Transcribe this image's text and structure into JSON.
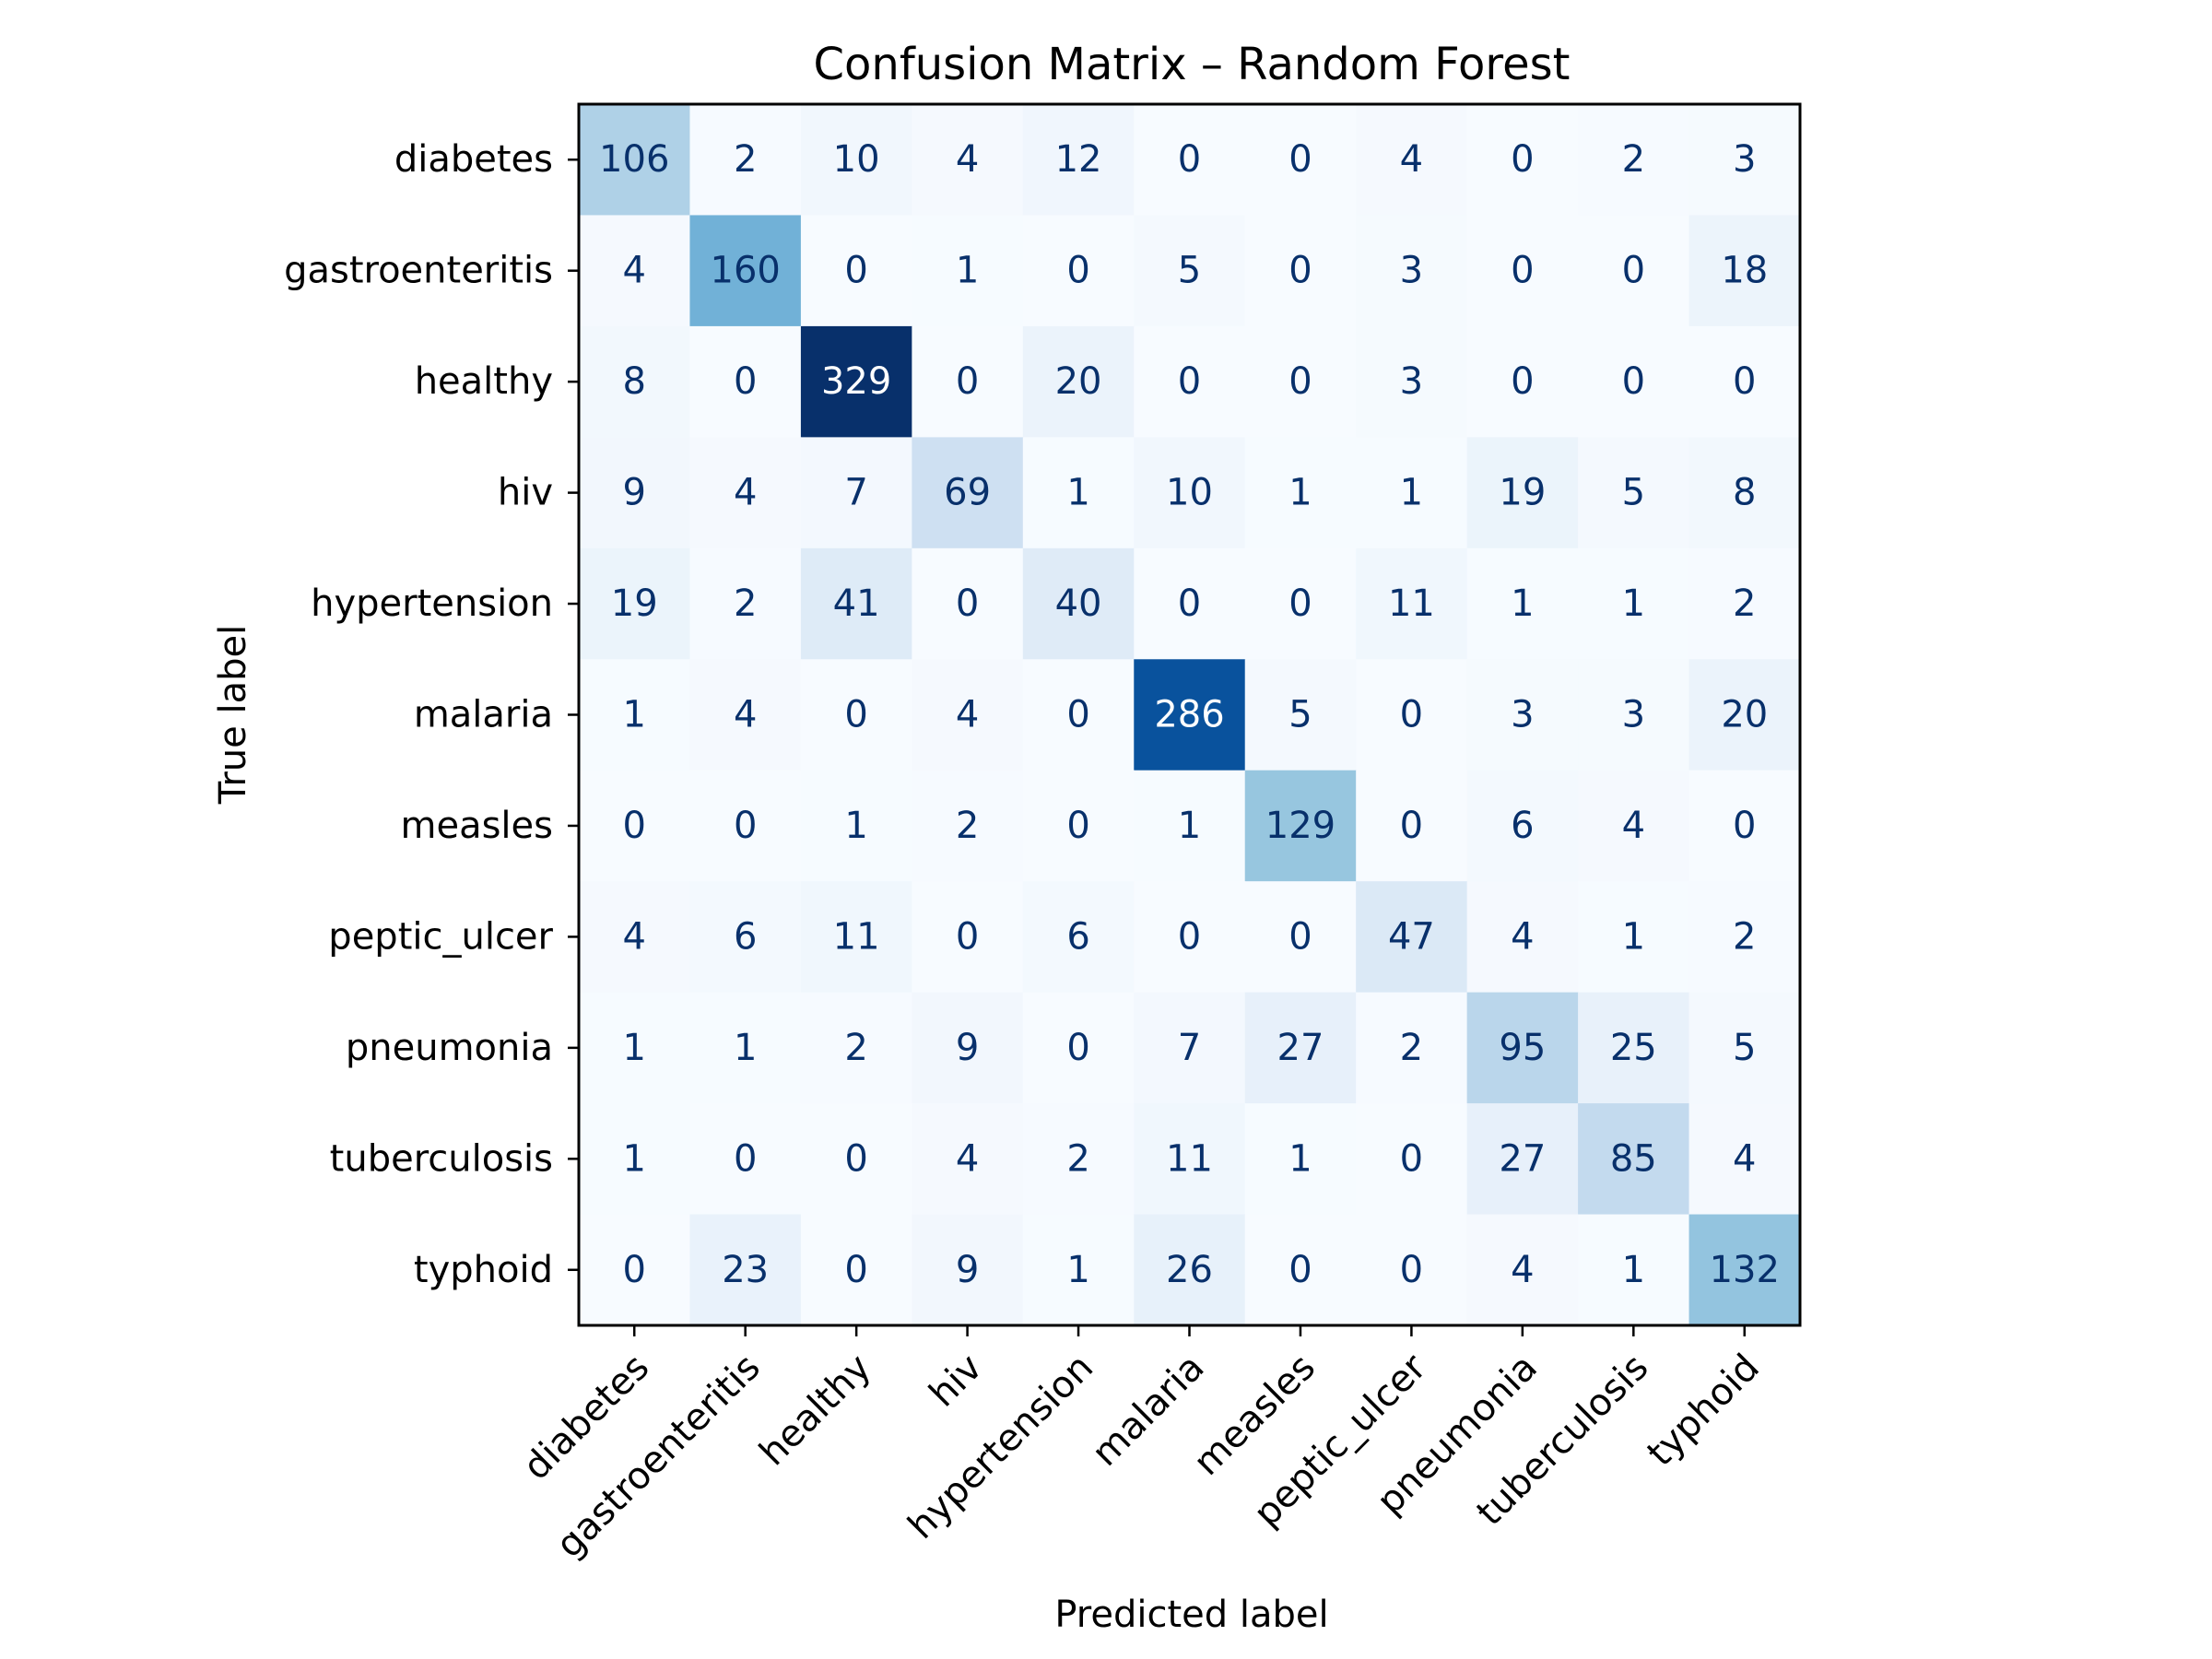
{
  "chart_data": {
    "type": "heatmap",
    "title": "Confusion Matrix – Random Forest",
    "xlabel": "Predicted label",
    "ylabel": "True label",
    "x_categories": [
      "diabetes",
      "gastroenteritis",
      "healthy",
      "hiv",
      "hypertension",
      "malaria",
      "measles",
      "peptic_ulcer",
      "pneumonia",
      "tuberculosis",
      "typhoid"
    ],
    "y_categories": [
      "diabetes",
      "gastroenteritis",
      "healthy",
      "hiv",
      "hypertension",
      "malaria",
      "measles",
      "peptic_ulcer",
      "pneumonia",
      "tuberculosis",
      "typhoid"
    ],
    "values": [
      [
        106,
        2,
        10,
        4,
        12,
        0,
        0,
        4,
        0,
        2,
        3
      ],
      [
        4,
        160,
        0,
        1,
        0,
        5,
        0,
        3,
        0,
        0,
        18
      ],
      [
        8,
        0,
        329,
        0,
        20,
        0,
        0,
        3,
        0,
        0,
        0
      ],
      [
        9,
        4,
        7,
        69,
        1,
        10,
        1,
        1,
        19,
        5,
        8
      ],
      [
        19,
        2,
        41,
        0,
        40,
        0,
        0,
        11,
        1,
        1,
        2
      ],
      [
        1,
        4,
        0,
        4,
        0,
        286,
        5,
        0,
        3,
        3,
        20
      ],
      [
        0,
        0,
        1,
        2,
        0,
        1,
        129,
        0,
        6,
        4,
        0
      ],
      [
        4,
        6,
        11,
        0,
        6,
        0,
        0,
        47,
        4,
        1,
        2
      ],
      [
        1,
        1,
        2,
        9,
        0,
        7,
        27,
        2,
        95,
        25,
        5
      ],
      [
        1,
        0,
        0,
        4,
        2,
        11,
        1,
        0,
        27,
        85,
        4
      ],
      [
        0,
        23,
        0,
        9,
        1,
        26,
        0,
        0,
        4,
        1,
        132
      ]
    ],
    "colormap": "Blues",
    "color_range": [
      0,
      329
    ],
    "colors": {
      "low": "#f7fbff",
      "high": "#08306b",
      "text_dark": "#08306b",
      "text_light": "#ffffff"
    }
  }
}
